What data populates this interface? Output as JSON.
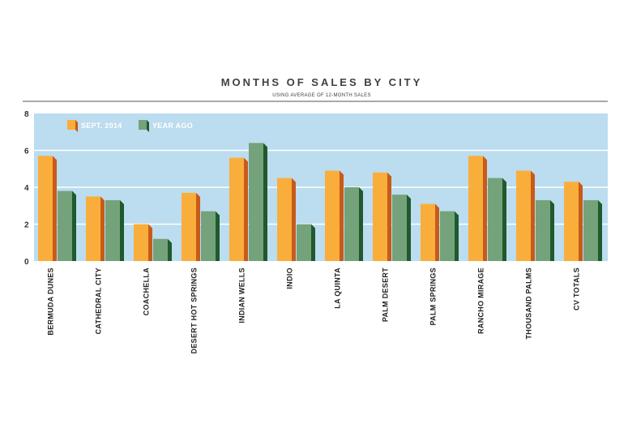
{
  "chart_data": {
    "type": "bar",
    "title": "MONTHS OF SALES BY CITY",
    "subtitle": "USING AVERAGE OF 12-MONTH SALES",
    "categories": [
      "BERMUDA DUNES",
      "CATHEDRAL CITY",
      "COACHELLA",
      "DESERT HOT SPRINGS",
      "INDIAN WELLS",
      "INDIO",
      "LA QUINTA",
      "PALM DESERT",
      "PALM SPRINGS",
      "RANCHO MIRAGE",
      "THOUSAND PALMS",
      "CV TOTALS"
    ],
    "series": [
      {
        "name": "SEPT. 2014",
        "values": [
          5.7,
          3.5,
          2.0,
          3.7,
          5.6,
          4.5,
          4.9,
          4.8,
          3.1,
          5.7,
          4.9,
          4.3
        ],
        "color": "#f9ae3b",
        "side_color": "#c85a1a"
      },
      {
        "name": "YEAR AGO",
        "values": [
          3.8,
          3.3,
          1.2,
          2.7,
          6.4,
          2.0,
          4.0,
          3.6,
          2.7,
          4.5,
          3.3,
          3.3
        ],
        "color": "#74a27a",
        "side_color": "#1f5a2c"
      }
    ],
    "ylim": [
      0,
      8
    ],
    "yticks": [
      0,
      2,
      4,
      6,
      8
    ],
    "grid": true,
    "legend_position": "top-left",
    "plot_background": "#bcdcef"
  }
}
